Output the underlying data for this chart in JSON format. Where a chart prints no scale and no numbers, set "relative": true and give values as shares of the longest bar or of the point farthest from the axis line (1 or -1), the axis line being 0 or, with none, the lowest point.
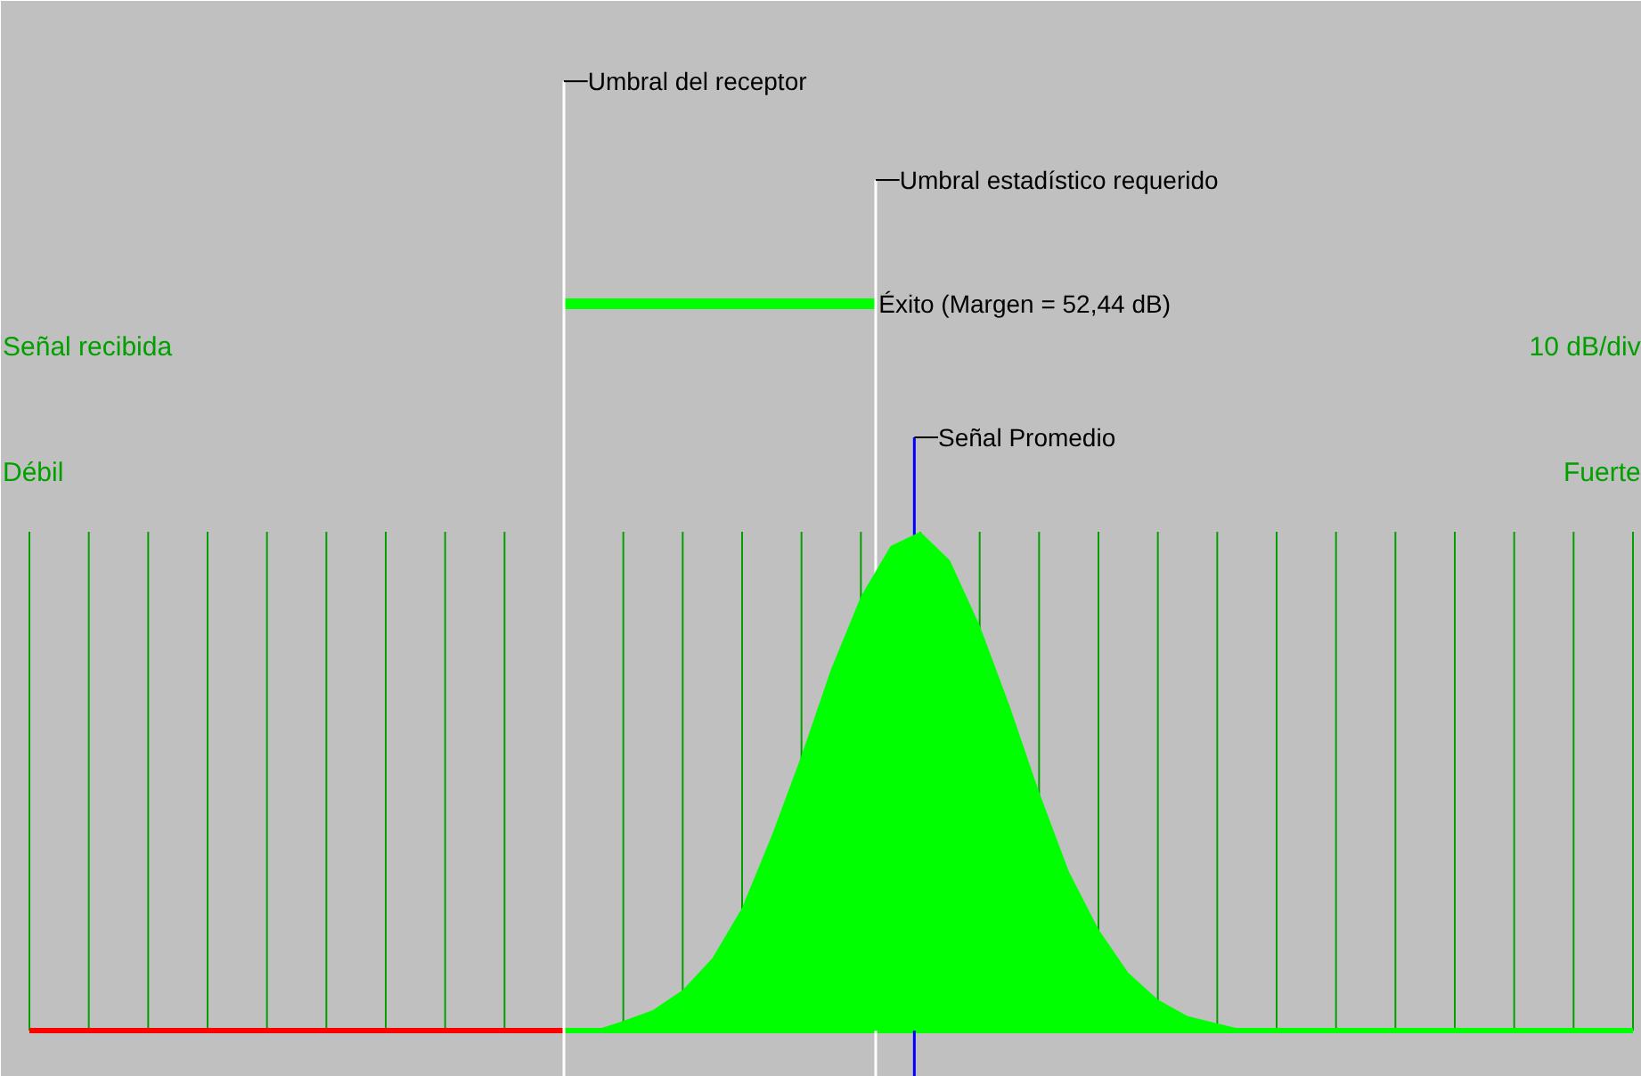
{
  "chart_data": {
    "type": "area",
    "relative": true,
    "grid": "x",
    "categories": [
      null,
      null,
      null,
      null,
      null,
      null,
      null,
      null,
      null,
      null,
      null,
      null,
      null,
      null,
      null,
      null,
      null,
      null,
      null,
      null,
      null,
      null,
      null,
      null,
      null,
      null,
      null,
      null,
      null,
      null,
      null,
      null,
      null,
      null,
      null,
      null,
      null,
      null,
      null,
      null,
      null,
      null,
      null,
      null,
      null,
      null,
      null,
      null,
      null,
      null,
      null,
      null,
      null,
      null,
      null
    ],
    "series": [
      {
        "color": "#00ff00",
        "values": [
          0,
          0,
          0,
          0,
          0,
          0,
          0,
          0,
          0,
          0,
          0,
          0,
          0,
          0,
          0,
          0,
          0,
          0,
          0,
          0,
          0.019,
          0.041,
          0.081,
          0.145,
          0.246,
          0.391,
          0.551,
          0.725,
          0.87,
          0.971,
          1,
          0.942,
          0.812,
          0.652,
          0.478,
          0.319,
          0.203,
          0.116,
          0.062,
          0.029,
          0.014,
          0,
          0,
          0,
          0,
          0,
          0,
          0,
          0,
          0,
          0,
          0,
          0,
          0,
          0
        ]
      }
    ],
    "annotations": [
      "Umbral del receptor",
      "Umbral estadístico requerido",
      "Éxito (Margen = 52,44 dB)",
      "Señal Promedio",
      "Señal recibida",
      "10 dB/div",
      "Débil",
      "Fuerte"
    ]
  }
}
